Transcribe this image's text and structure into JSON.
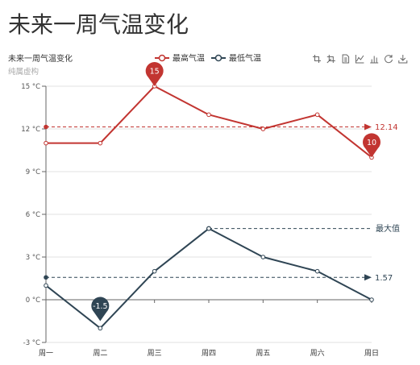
{
  "page": {
    "heading": "未来一周气温变化"
  },
  "chart_data": {
    "type": "line",
    "title": "未来一周气温变化",
    "subtitle": "纯属虚构",
    "categories": [
      "周一",
      "周二",
      "周三",
      "周四",
      "周五",
      "周六",
      "周日"
    ],
    "ylim": [
      -3,
      15
    ],
    "y_ticks": [
      -3,
      0,
      3,
      6,
      9,
      12,
      15
    ],
    "y_tick_labels": [
      "-3 °C",
      "0 °C",
      "3 °C",
      "6 °C",
      "9 °C",
      "12 °C",
      "15 °C"
    ],
    "grid": true,
    "legend_placement": "top-center",
    "series": [
      {
        "name": "最高气温",
        "color": "#c23531",
        "values": [
          11,
          11,
          15,
          13,
          12,
          13,
          10
        ],
        "mark_points": [
          {
            "x": "周三",
            "value": 15
          },
          {
            "x": "周日",
            "value": 10
          }
        ],
        "average_line": 12.14
      },
      {
        "name": "最低气温",
        "color": "#2f4554",
        "values": [
          1,
          -2,
          2,
          5,
          3,
          2,
          0
        ],
        "mark_points": [
          {
            "x": "周二",
            "value": -1.5
          }
        ],
        "average_line": 1.57,
        "max_line_label": "最大值"
      }
    ]
  },
  "toolbox": {
    "icons": [
      "zoom-icon",
      "zoom-reset-icon",
      "data-view-icon",
      "line-chart-icon",
      "bar-chart-icon",
      "restore-icon",
      "download-icon"
    ]
  }
}
